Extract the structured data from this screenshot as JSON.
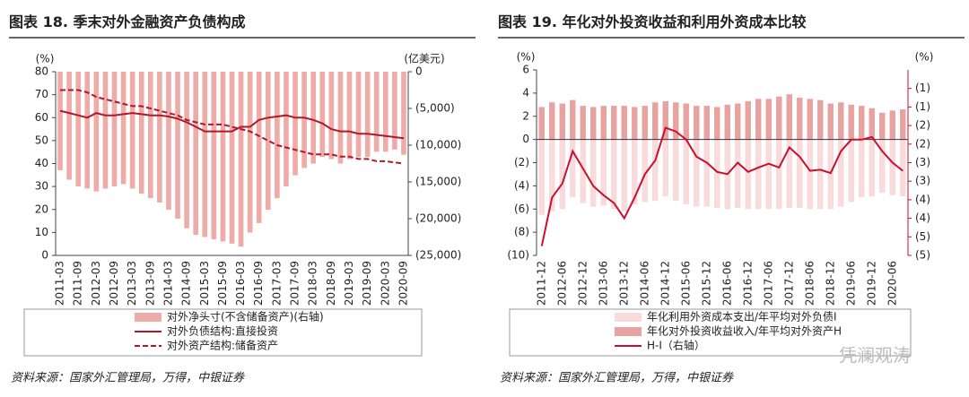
{
  "chart_data": [
    {
      "type": "combo",
      "title": "图表 18. 季末对外金融资产负债构成",
      "ylabel": "(%)",
      "y2label": "(亿美元)",
      "source": "资料来源：国家外汇管理局，万得，中银证券",
      "categories": [
        "2011-03",
        null,
        "2011-09",
        null,
        "2012-03",
        null,
        "2012-09",
        null,
        "2013-03",
        null,
        "2013-09",
        null,
        "2014-03",
        null,
        "2014-09",
        null,
        "2015-03",
        null,
        "2015-09",
        null,
        "2016-03",
        null,
        "2016-09",
        null,
        "2017-03",
        null,
        "2017-09",
        null,
        "2018-03",
        null,
        "2018-09",
        null,
        "2019-03",
        null,
        "2019-09",
        null,
        "2020-03",
        null,
        "2020-09"
      ],
      "ylim": [
        0,
        80
      ],
      "yticks": [
        0,
        10,
        20,
        30,
        40,
        50,
        60,
        70,
        80
      ],
      "y2lim": [
        -25000,
        0
      ],
      "y2ticks": [
        0,
        {
          "value": -5000,
          "label": "(5,000)"
        },
        {
          "value": -10000,
          "label": "(10,000)"
        },
        {
          "value": -15000,
          "label": "(15,000)"
        },
        {
          "value": -20000,
          "label": "(20,000)"
        },
        {
          "value": -25000,
          "label": "(25,000)"
        }
      ],
      "series": [
        {
          "name": "对外净头寸(不含储备资产)(右轴)",
          "type": "bar",
          "axis": "y2",
          "color": "#eeaca9",
          "values": [
            -13400,
            -14700,
            -15600,
            -15900,
            -16300,
            -15900,
            -15600,
            -15300,
            -15900,
            -16600,
            -17200,
            -17800,
            -18800,
            -20000,
            -21300,
            -22200,
            -22500,
            -22800,
            -23100,
            -23400,
            -23800,
            -21900,
            -20600,
            -18800,
            -17200,
            -15600,
            -14100,
            -13100,
            -12500,
            -11600,
            -11900,
            -12500,
            -11900,
            -11600,
            -11600,
            -10900,
            -10900,
            -10600,
            -11300
          ]
        },
        {
          "name": "对外负债结构:直接投资",
          "type": "line",
          "color": "#b0192a",
          "values": [
            63,
            62,
            61,
            60,
            62,
            61,
            61,
            61.5,
            62,
            61.5,
            61,
            61,
            60.5,
            59.5,
            58,
            56,
            54,
            54,
            54,
            54,
            56,
            56,
            59,
            60,
            60.5,
            61,
            60,
            60,
            59,
            57.5,
            55,
            54,
            54,
            53,
            53,
            52.5,
            52,
            51.5,
            51
          ]
        },
        {
          "name": "对外资产结构:储备资产",
          "type": "line",
          "dash": true,
          "color": "#b0192a",
          "values": [
            72,
            72,
            72,
            71,
            69,
            68,
            67,
            66,
            65,
            65,
            64,
            63,
            62,
            61,
            59,
            58,
            57,
            57,
            57,
            56,
            55,
            54,
            52,
            50,
            48,
            47,
            46,
            45,
            44,
            44,
            44,
            43,
            43,
            42,
            42,
            41,
            41,
            40.5,
            40
          ]
        }
      ]
    },
    {
      "type": "combo",
      "title": "图表 19. 年化对外投资收益和利用外资成本比较",
      "ylabel": "(%)",
      "y2label": "(%)",
      "source": "资料来源：国家外汇管理局，万得，中银证券",
      "watermark": "凭澜观涛",
      "zero_line": true,
      "categories": [
        "2011-12",
        null,
        "2012-06",
        null,
        "2012-12",
        null,
        "2013-06",
        null,
        "2013-12",
        null,
        "2014-06",
        null,
        "2014-12",
        null,
        "2015-06",
        null,
        "2015-12",
        null,
        "2016-06",
        null,
        "2016-12",
        null,
        "2017-06",
        null,
        "2017-12",
        null,
        "2018-06",
        null,
        "2018-12",
        null,
        "2019-06",
        null,
        "2019-12",
        null,
        "2020-06",
        null
      ],
      "ylim": [
        -10,
        6
      ],
      "yticks": [
        {
          "value": -10,
          "label": "(10)"
        },
        {
          "value": -8,
          "label": "(8)"
        },
        {
          "value": -6,
          "label": "(6)"
        },
        {
          "value": -4,
          "label": "(4)"
        },
        {
          "value": -2,
          "label": "(2)"
        },
        0,
        2,
        4,
        6
      ],
      "y2lim": [
        -5,
        0
      ],
      "y2ticks": [
        {
          "value": -0.5,
          "label": "(1)"
        },
        {
          "value": -1,
          "label": "(1)"
        },
        {
          "value": -1.5,
          "label": "(2)"
        },
        {
          "value": -2,
          "label": "(2)"
        },
        {
          "value": -2.5,
          "label": "(3)"
        },
        {
          "value": -3,
          "label": "(3)"
        },
        {
          "value": -3.5,
          "label": "(4)"
        },
        {
          "value": -4,
          "label": "(4)"
        },
        {
          "value": -4.5,
          "label": "(5)"
        },
        {
          "value": -5,
          "label": "(5)"
        }
      ],
      "y2color": "#c8102e",
      "series": [
        {
          "name": "年化利用外资成本支出/年平均对外负债I",
          "type": "bar",
          "color": "#f8dbda",
          "values": [
            -6.5,
            -6.2,
            -6.0,
            -5.0,
            -5.5,
            -5.8,
            -5.7,
            -6.0,
            -6.2,
            -5.6,
            -5.4,
            -5.3,
            -4.9,
            -5.3,
            -5.6,
            -5.8,
            -5.8,
            -5.9,
            -6.0,
            -5.9,
            -6.0,
            -6.0,
            -6.0,
            -6.0,
            -5.9,
            -5.9,
            -6.0,
            -6.0,
            -6.0,
            -5.8,
            -5.4,
            -5.0,
            -4.9,
            -4.6,
            -4.8,
            -4.9
          ]
        },
        {
          "name": "年化对外投资收益收入/年平均对外资产H",
          "type": "bar",
          "color": "#e8a3a1",
          "values": [
            2.8,
            3.2,
            3.1,
            3.4,
            2.9,
            2.8,
            2.9,
            2.9,
            2.9,
            2.8,
            2.9,
            3.2,
            3.3,
            3.2,
            3.1,
            2.9,
            2.9,
            2.8,
            3.0,
            3.1,
            3.3,
            3.5,
            3.5,
            3.7,
            3.9,
            3.6,
            3.5,
            3.4,
            3.1,
            3.2,
            3.0,
            2.9,
            2.7,
            2.3,
            2.5,
            2.6
          ]
        },
        {
          "name": "H-I（右轴）",
          "type": "line",
          "axis": "y2",
          "color": "#c8102e",
          "values": [
            -4.75,
            -3.44,
            -3.06,
            -2.19,
            -2.66,
            -3.13,
            -3.38,
            -3.59,
            -4.0,
            -3.44,
            -2.81,
            -2.44,
            -1.56,
            -1.66,
            -1.88,
            -2.34,
            -2.5,
            -2.75,
            -2.81,
            -2.5,
            -2.75,
            -2.63,
            -2.53,
            -2.63,
            -2.09,
            -2.34,
            -2.72,
            -2.69,
            -2.78,
            -2.19,
            -1.88,
            -1.88,
            -1.81,
            -2.19,
            -2.5,
            -2.72
          ]
        }
      ]
    }
  ]
}
